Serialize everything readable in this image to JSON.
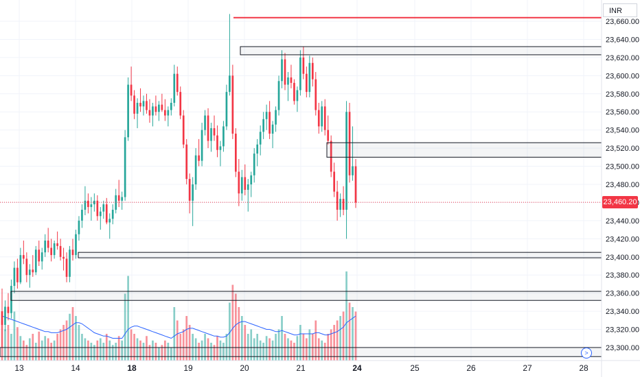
{
  "currency": "INR",
  "current_price_label": "23,460.20",
  "colors": {
    "up": "#26a69a",
    "down": "#f23645",
    "ma": "#2962ff",
    "resistance": "#f23645",
    "zone_border": "#131722",
    "grid": "#f0f3fa",
    "price_line": "#f23645"
  },
  "controls": {
    "goto_icon": "scroll-to-realtime-icon"
  },
  "chart_data": {
    "type": "candlestick",
    "yticks": [
      "23,660.00",
      "23,640.00",
      "23,620.00",
      "23,600.00",
      "23,580.00",
      "23,560.00",
      "23,540.00",
      "23,520.00",
      "23,500.00",
      "23,480.00",
      "23,460.00",
      "23,440.00",
      "23,420.00",
      "23,400.00",
      "23,380.00",
      "23,360.00",
      "23,340.00",
      "23,320.00",
      "23,300.00"
    ],
    "ytick_values": [
      23660,
      23640,
      23620,
      23600,
      23580,
      23560,
      23540,
      23520,
      23500,
      23480,
      23460,
      23440,
      23420,
      23400,
      23380,
      23360,
      23340,
      23320,
      23300
    ],
    "ylim": [
      23292,
      23670
    ],
    "xlabels": [
      {
        "label": "13",
        "day": 13,
        "bold": false
      },
      {
        "label": "14",
        "day": 14,
        "bold": false
      },
      {
        "label": "18",
        "day": 18,
        "bold": true
      },
      {
        "label": "19",
        "day": 19,
        "bold": false
      },
      {
        "label": "20",
        "day": 20,
        "bold": false
      },
      {
        "label": "21",
        "day": 21,
        "bold": false
      },
      {
        "label": "24",
        "day": 24,
        "bold": true
      },
      {
        "label": "25",
        "day": 25,
        "bold": false
      },
      {
        "label": "26",
        "day": 26,
        "bold": false
      },
      {
        "label": "27",
        "day": 27,
        "bold": false
      },
      {
        "label": "28",
        "day": 28,
        "bold": false
      }
    ],
    "last_price": 23460.2,
    "resistance_level": 23664,
    "zones": [
      {
        "from": 23623,
        "to": 23632
      },
      {
        "from": 23510,
        "to": 23526
      },
      {
        "from": 23399,
        "to": 23405
      },
      {
        "from": 23352,
        "to": 23362
      },
      {
        "from": 23290,
        "to": 23300
      }
    ],
    "candles": [
      [
        23340,
        23365,
        23300,
        23325
      ],
      [
        23325,
        23352,
        23318,
        23345
      ],
      [
        23345,
        23360,
        23330,
        23338
      ],
      [
        23338,
        23375,
        23332,
        23368
      ],
      [
        23368,
        23395,
        23360,
        23388
      ],
      [
        23388,
        23398,
        23365,
        23372
      ],
      [
        23372,
        23410,
        23370,
        23402
      ],
      [
        23402,
        23418,
        23392,
        23398
      ],
      [
        23398,
        23405,
        23372,
        23380
      ],
      [
        23380,
        23392,
        23366,
        23386
      ],
      [
        23386,
        23402,
        23378,
        23383
      ],
      [
        23383,
        23412,
        23380,
        23408
      ],
      [
        23408,
        23418,
        23390,
        23395
      ],
      [
        23395,
        23410,
        23386,
        23405
      ],
      [
        23405,
        23425,
        23400,
        23418
      ],
      [
        23418,
        23432,
        23405,
        23410
      ],
      [
        23410,
        23420,
        23395,
        23402
      ],
      [
        23402,
        23418,
        23398,
        23415
      ],
      [
        23415,
        23428,
        23408,
        23412
      ],
      [
        23412,
        23420,
        23396,
        23400
      ],
      [
        23400,
        23410,
        23385,
        23398
      ],
      [
        23398,
        23405,
        23372,
        23378
      ],
      [
        23378,
        23412,
        23372,
        23408
      ],
      [
        23408,
        23420,
        23396,
        23402
      ],
      [
        23402,
        23430,
        23398,
        23425
      ],
      [
        23425,
        23445,
        23418,
        23440
      ],
      [
        23440,
        23458,
        23432,
        23452
      ],
      [
        23452,
        23478,
        23446,
        23462
      ],
      [
        23462,
        23470,
        23448,
        23455
      ],
      [
        23455,
        23466,
        23440,
        23458
      ],
      [
        23458,
        23470,
        23450,
        23462
      ],
      [
        23462,
        23468,
        23440,
        23445
      ],
      [
        23445,
        23455,
        23430,
        23450
      ],
      [
        23450,
        23462,
        23442,
        23458
      ],
      [
        23458,
        23465,
        23436,
        23438
      ],
      [
        23438,
        23448,
        23420,
        23442
      ],
      [
        23442,
        23458,
        23436,
        23452
      ],
      [
        23452,
        23475,
        23448,
        23468
      ],
      [
        23468,
        23485,
        23455,
        23462
      ],
      [
        23462,
        23472,
        23452,
        23466
      ],
      [
        23466,
        23540,
        23462,
        23532
      ],
      [
        23532,
        23598,
        23528,
        23590
      ],
      [
        23590,
        23610,
        23572,
        23578
      ],
      [
        23578,
        23584,
        23552,
        23558
      ],
      [
        23558,
        23575,
        23542,
        23570
      ],
      [
        23570,
        23586,
        23560,
        23566
      ],
      [
        23566,
        23578,
        23556,
        23572
      ],
      [
        23572,
        23580,
        23558,
        23562
      ],
      [
        23562,
        23574,
        23548,
        23556
      ],
      [
        23556,
        23570,
        23544,
        23566
      ],
      [
        23566,
        23578,
        23556,
        23560
      ],
      [
        23560,
        23572,
        23550,
        23568
      ],
      [
        23568,
        23580,
        23560,
        23562
      ],
      [
        23562,
        23574,
        23550,
        23556
      ],
      [
        23556,
        23566,
        23544,
        23562
      ],
      [
        23562,
        23575,
        23556,
        23570
      ],
      [
        23570,
        23612,
        23566,
        23602
      ],
      [
        23602,
        23610,
        23578,
        23582
      ],
      [
        23582,
        23588,
        23552,
        23556
      ],
      [
        23556,
        23562,
        23520,
        23524
      ],
      [
        23524,
        23530,
        23480,
        23486
      ],
      [
        23486,
        23492,
        23448,
        23462
      ],
      [
        23462,
        23488,
        23434,
        23480
      ],
      [
        23480,
        23520,
        23474,
        23512
      ],
      [
        23512,
        23530,
        23500,
        23506
      ],
      [
        23506,
        23548,
        23500,
        23540
      ],
      [
        23540,
        23562,
        23534,
        23556
      ],
      [
        23556,
        23564,
        23520,
        23528
      ],
      [
        23528,
        23548,
        23516,
        23542
      ],
      [
        23542,
        23556,
        23528,
        23534
      ],
      [
        23534,
        23545,
        23510,
        23518
      ],
      [
        23518,
        23528,
        23500,
        23522
      ],
      [
        23522,
        23550,
        23516,
        23544
      ],
      [
        23544,
        23590,
        23540,
        23582
      ],
      [
        23582,
        23668,
        23578,
        23600
      ],
      [
        23600,
        23612,
        23530,
        23536
      ],
      [
        23536,
        23542,
        23488,
        23494
      ],
      [
        23494,
        23508,
        23456,
        23470
      ],
      [
        23470,
        23496,
        23462,
        23488
      ],
      [
        23488,
        23502,
        23468,
        23474
      ],
      [
        23474,
        23486,
        23450,
        23480
      ],
      [
        23480,
        23494,
        23466,
        23490
      ],
      [
        23490,
        23520,
        23482,
        23514
      ],
      [
        23514,
        23530,
        23500,
        23524
      ],
      [
        23524,
        23545,
        23512,
        23538
      ],
      [
        23538,
        23560,
        23530,
        23552
      ],
      [
        23552,
        23568,
        23540,
        23560
      ],
      [
        23560,
        23572,
        23530,
        23536
      ],
      [
        23536,
        23550,
        23520,
        23546
      ],
      [
        23546,
        23566,
        23538,
        23562
      ],
      [
        23562,
        23600,
        23556,
        23594
      ],
      [
        23594,
        23628,
        23586,
        23618
      ],
      [
        23618,
        23625,
        23584,
        23590
      ],
      [
        23590,
        23604,
        23572,
        23598
      ],
      [
        23598,
        23612,
        23586,
        23592
      ],
      [
        23592,
        23596,
        23568,
        23572
      ],
      [
        23572,
        23588,
        23560,
        23584
      ],
      [
        23584,
        23628,
        23578,
        23620
      ],
      [
        23620,
        23632,
        23596,
        23602
      ],
      [
        23602,
        23610,
        23576,
        23582
      ],
      [
        23582,
        23622,
        23576,
        23614
      ],
      [
        23614,
        23620,
        23588,
        23596
      ],
      [
        23596,
        23604,
        23556,
        23562
      ],
      [
        23562,
        23570,
        23536,
        23544
      ],
      [
        23544,
        23572,
        23538,
        23566
      ],
      [
        23566,
        23574,
        23534,
        23540
      ],
      [
        23540,
        23556,
        23524,
        23528
      ],
      [
        23528,
        23534,
        23488,
        23494
      ],
      [
        23494,
        23504,
        23466,
        23472
      ],
      [
        23472,
        23484,
        23440,
        23452
      ],
      [
        23452,
        23470,
        23444,
        23464
      ],
      [
        23464,
        23478,
        23446,
        23452
      ],
      [
        23452,
        23572,
        23420,
        23560
      ],
      [
        23560,
        23570,
        23482,
        23490
      ],
      [
        23490,
        23544,
        23484,
        23500
      ],
      [
        23500,
        23508,
        23454,
        23460
      ]
    ],
    "volumes": [
      18,
      14,
      16,
      12,
      22,
      15,
      11,
      9,
      7,
      10,
      12,
      8,
      13,
      9,
      11,
      10,
      8,
      9,
      12,
      14,
      16,
      18,
      21,
      24,
      20,
      16,
      12,
      10,
      9,
      8,
      7,
      9,
      10,
      8,
      12,
      9,
      7,
      8,
      11,
      9,
      30,
      38,
      14,
      12,
      10,
      9,
      8,
      11,
      7,
      9,
      8,
      6,
      7,
      9,
      8,
      6,
      24,
      18,
      12,
      14,
      20,
      16,
      12,
      10,
      8,
      9,
      12,
      10,
      8,
      7,
      11,
      9,
      8,
      12,
      26,
      34,
      30,
      24,
      20,
      16,
      12,
      14,
      10,
      12,
      9,
      8,
      11,
      10,
      9,
      12,
      14,
      20,
      12,
      10,
      9,
      8,
      11,
      16,
      12,
      10,
      14,
      12,
      18,
      10,
      9,
      8,
      12,
      14,
      16,
      18,
      20,
      22,
      40,
      26,
      24,
      22
    ],
    "ma_volume": [
      20,
      19.5,
      19,
      18.5,
      18,
      17.5,
      17,
      16.5,
      16,
      15.5,
      15,
      14.5,
      14,
      13.5,
      13,
      13,
      12.5,
      12.5,
      12.5,
      13,
      13.5,
      14,
      15,
      16,
      17,
      17,
      16.5,
      15.5,
      14.5,
      13.5,
      12.5,
      12,
      11.5,
      11,
      11,
      10.5,
      10,
      10,
      10,
      10,
      12,
      14,
      15,
      15.5,
      15.5,
      15,
      14.5,
      14,
      13.5,
      13,
      12.5,
      12,
      11.5,
      11,
      10.5,
      10,
      11,
      12,
      12.5,
      13,
      14,
      14.5,
      14.5,
      14,
      13.5,
      13,
      12.5,
      12,
      11.5,
      11,
      11,
      10.5,
      10.5,
      11,
      12.5,
      14.5,
      16,
      17,
      17.5,
      17.5,
      17,
      16.5,
      16,
      15.5,
      15,
      14.5,
      14,
      14,
      13.5,
      13,
      13,
      13.5,
      13,
      12.5,
      12,
      11.5,
      11.5,
      12,
      12,
      12,
      12,
      12,
      12.5,
      12.5,
      12,
      11.5,
      11.5,
      12,
      12.5,
      13,
      14,
      15,
      17,
      18,
      19,
      20
    ]
  }
}
